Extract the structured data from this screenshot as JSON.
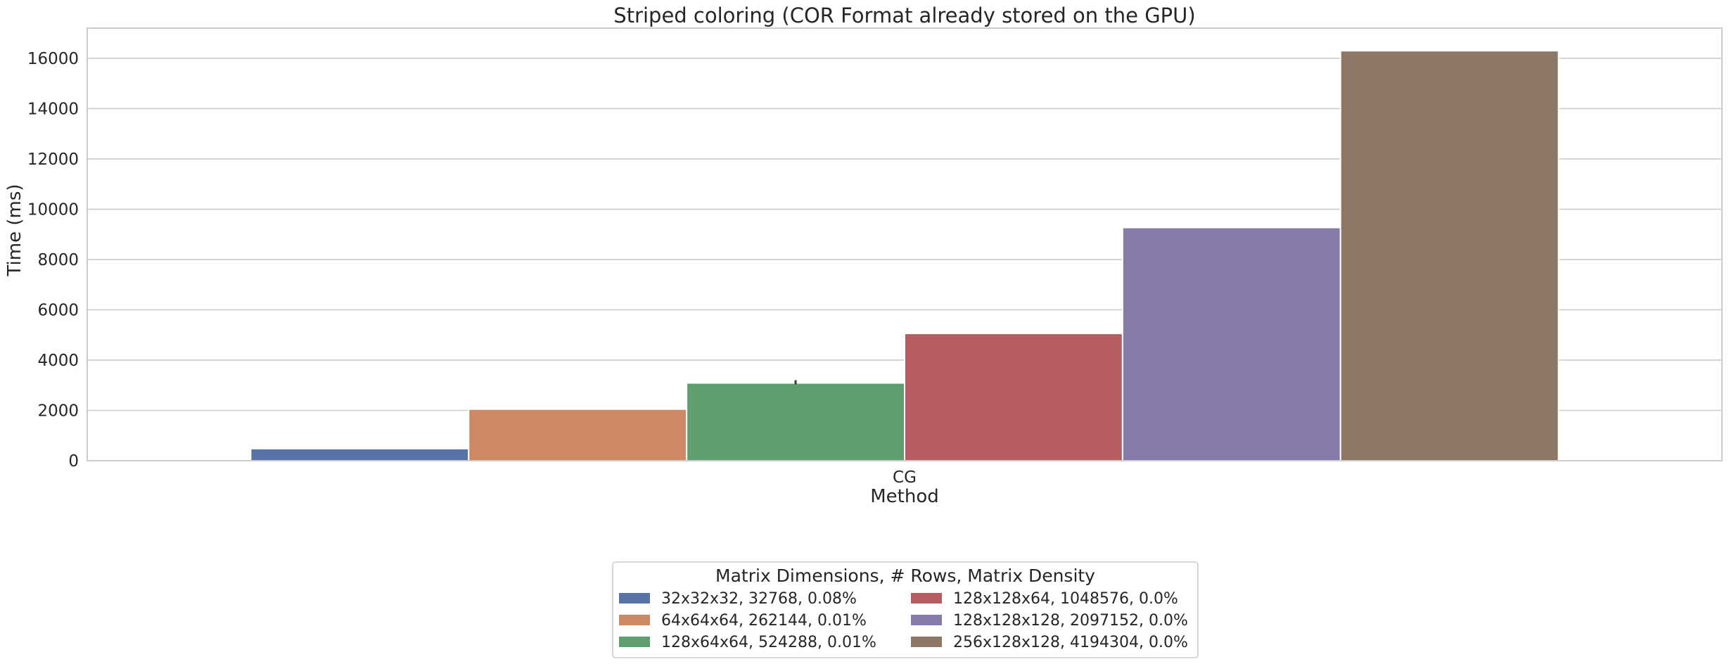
{
  "chart_data": {
    "type": "bar",
    "title": "Striped coloring (COR Format already stored on the GPU)",
    "xlabel": "Method",
    "ylabel": "Time (ms)",
    "categories": [
      "CG"
    ],
    "ylim": [
      0,
      17200
    ],
    "yticks": [
      0,
      2000,
      4000,
      6000,
      8000,
      10000,
      12000,
      14000,
      16000
    ],
    "grid": true,
    "legend_title": "Matrix Dimensions, # Rows, Matrix Density",
    "legend_placement": "bottom-center, outside, two columns",
    "series": [
      {
        "name": "32x32x32, 32768, 0.08%",
        "values": [
          480
        ],
        "color": "#5874a6"
      },
      {
        "name": "64x64x64, 262144, 0.01%",
        "values": [
          2050
        ],
        "color": "#cf8864"
      },
      {
        "name": "128x64x64, 524288, 0.01%",
        "values": [
          3090
        ],
        "color": "#5f9e6e"
      },
      {
        "name": "128x128x64, 1048576, 0.0%",
        "values": [
          5060
        ],
        "color": "#b55d60"
      },
      {
        "name": "128x128x128, 2097152, 0.0%",
        "values": [
          9270
        ],
        "color": "#867aab"
      },
      {
        "name": "256x128x128, 4194304, 0.0%",
        "values": [
          16300
        ],
        "color": "#8d7866"
      }
    ]
  }
}
